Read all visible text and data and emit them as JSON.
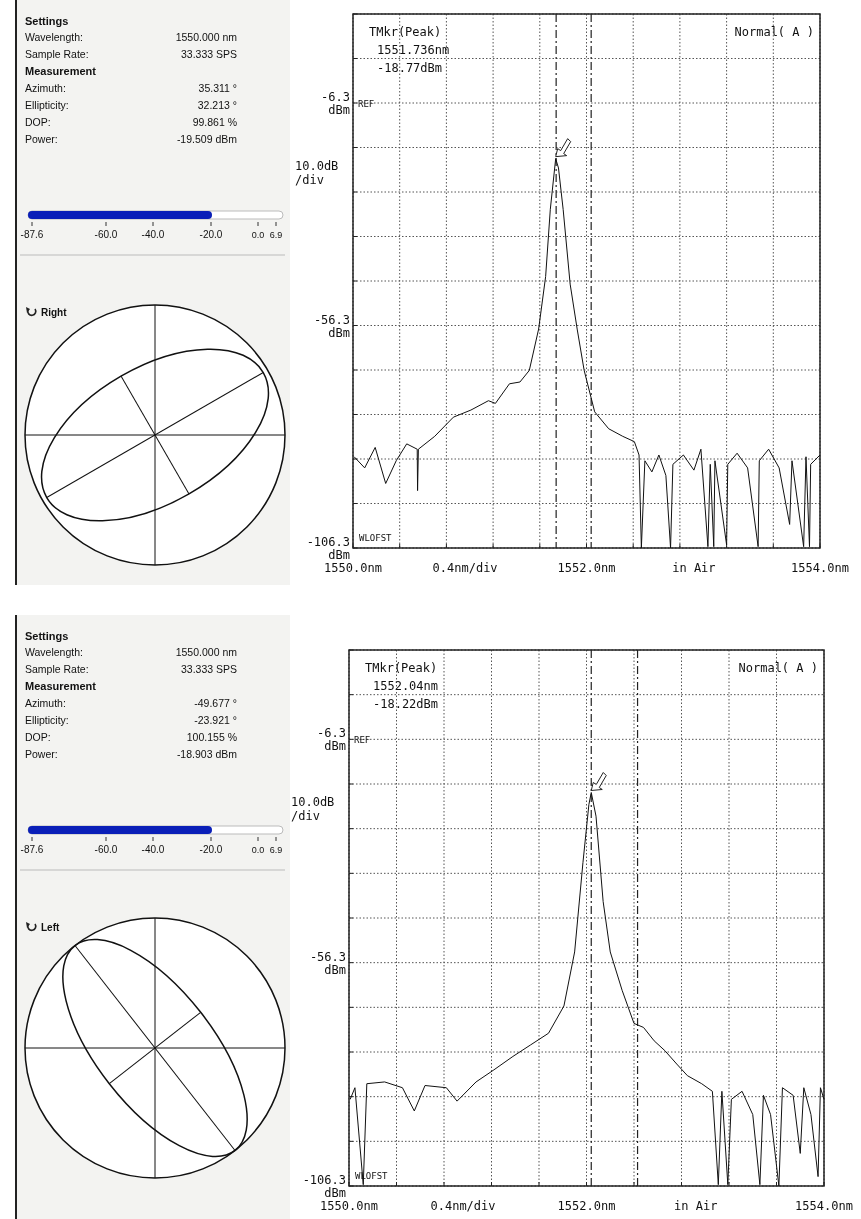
{
  "chart_data": [
    {
      "type": "other",
      "title": "Settings",
      "subtitle": "Measurement",
      "annotations": [
        "Wavelength:",
        "1550.000 nm",
        "Sample Rate:",
        "33.333 SPS",
        "Azimuth:",
        "35.311 °",
        "Ellipticity:",
        "32.213 °",
        "DOP:",
        "99.861 %",
        "Power:",
        "-19.509 dBm",
        "-87.6",
        "-60.0",
        "-40.0",
        "-20.0",
        "0.0",
        "6.9",
        "Right"
      ]
    },
    {
      "type": "line",
      "grid": true,
      "xlim": [
        1550,
        1554
      ],
      "ylim": [
        -106.3,
        13.7
      ],
      "xticks": [
        {
          "value": 1550,
          "label": "1550.0nm"
        },
        {
          "value": 1550.4,
          "label": null
        },
        {
          "value": 1550.8,
          "label": null
        },
        {
          "value": 1551.2,
          "label": null
        },
        {
          "value": 1551.6,
          "label": null
        },
        {
          "value": 1552,
          "label": "1552.0nm"
        },
        {
          "value": 1552.4,
          "label": null
        },
        {
          "value": 1552.8,
          "label": null
        },
        {
          "value": 1553.2,
          "label": null
        },
        {
          "value": 1553.6,
          "label": null
        },
        {
          "value": 1554,
          "label": "1554.0nm"
        }
      ],
      "yticks": [
        {
          "value": 13.7,
          "label": null
        },
        {
          "value": 3.7,
          "label": null
        },
        {
          "value": -6.3,
          "label": "-6.3 dBm"
        },
        {
          "value": -16.3,
          "label": null
        },
        {
          "value": -26.3,
          "label": null
        },
        {
          "value": -36.3,
          "label": null
        },
        {
          "value": -46.3,
          "label": null
        },
        {
          "value": -56.3,
          "label": "-56.3 dBm"
        },
        {
          "value": -66.3,
          "label": null
        },
        {
          "value": -76.3,
          "label": null
        },
        {
          "value": -86.3,
          "label": null
        },
        {
          "value": -96.3,
          "label": null
        },
        {
          "value": -106.3,
          "label": "-106.3 dBm"
        }
      ],
      "ref_lines": [
        {
          "axis": "x",
          "value": 1551.74,
          "line_style": "dashdot"
        },
        {
          "axis": "x",
          "value": 1552.04,
          "line_style": "dashdot"
        }
      ],
      "xlabel": "0.4nm/div",
      "ylabel": "10.0dB /div",
      "annotations": [
        "TMkr(Peak)",
        "1551.736nm",
        "-18.77dBm",
        "Normal( A )",
        "REF",
        "WLOFST",
        "in Air"
      ],
      "series": [
        {
          "color": "#111111",
          "x": [
            1550.01,
            1550.1,
            1550.19,
            1550.28,
            1550.37,
            1550.46,
            1550.55,
            1550.553,
            1550.56,
            1550.7,
            1550.86,
            1551.01,
            1551.16,
            1551.22,
            1551.34,
            1551.43,
            1551.51,
            1551.59,
            1551.65,
            1551.69,
            1551.736,
            1551.76,
            1551.8,
            1551.86,
            1551.92,
            1551.98,
            1552.07,
            1552.19,
            1552.31,
            1552.41,
            1552.45,
            1552.47,
            1552.5,
            1552.56,
            1552.62,
            1552.68,
            1552.72,
            1552.74,
            1552.83,
            1552.92,
            1552.98,
            1553.04,
            1553.06,
            1553.09,
            1553.1,
            1553.2,
            1553.21,
            1553.29,
            1553.38,
            1553.47,
            1553.48,
            1553.56,
            1553.65,
            1553.74,
            1553.76,
            1553.86,
            1553.88,
            1553.91,
            1553.92,
            1554.0
          ],
          "values": [
            -85.8,
            -88.3,
            -83.7,
            -91.8,
            -86.7,
            -82.9,
            -84.1,
            -93.4,
            -84.1,
            -81.2,
            -76.9,
            -75.3,
            -73.2,
            -73.8,
            -69.4,
            -69.0,
            -66.4,
            -57.1,
            -45.3,
            -30.2,
            -18.8,
            -20.9,
            -30.2,
            -47.0,
            -57.1,
            -66.4,
            -75.7,
            -79.5,
            -81.2,
            -82.4,
            -85.4,
            -106.3,
            -86.7,
            -89.2,
            -85.4,
            -90.0,
            -106.3,
            -87.5,
            -85.4,
            -88.8,
            -84.1,
            -106.0,
            -87.5,
            -106.0,
            -86.7,
            -105.6,
            -87.5,
            -85.0,
            -88.3,
            -106.0,
            -86.7,
            -84.1,
            -88.3,
            -101.0,
            -86.7,
            -106.0,
            -85.8,
            -106.0,
            -87.5,
            -85.4
          ]
        }
      ]
    },
    {
      "type": "other",
      "title": "Settings",
      "subtitle": "Measurement",
      "annotations": [
        "Wavelength:",
        "1550.000 nm",
        "Sample Rate:",
        "33.333 SPS",
        "Azimuth:",
        "-49.677 °",
        "Ellipticity:",
        "-23.921 °",
        "DOP:",
        "100.155 %",
        "Power:",
        "-18.903 dBm",
        "-87.6",
        "-60.0",
        "-40.0",
        "-20.0",
        "0.0",
        "6.9",
        "Left"
      ]
    },
    {
      "type": "line",
      "grid": true,
      "xlim": [
        1550,
        1554
      ],
      "ylim": [
        -106.3,
        13.7
      ],
      "xticks": [
        {
          "value": 1550,
          "label": "1550.0nm"
        },
        {
          "value": 1550.4,
          "label": null
        },
        {
          "value": 1550.8,
          "label": null
        },
        {
          "value": 1551.2,
          "label": null
        },
        {
          "value": 1551.6,
          "label": null
        },
        {
          "value": 1552,
          "label": "1552.0nm"
        },
        {
          "value": 1552.4,
          "label": null
        },
        {
          "value": 1552.8,
          "label": null
        },
        {
          "value": 1553.2,
          "label": null
        },
        {
          "value": 1553.6,
          "label": null
        },
        {
          "value": 1554,
          "label": "1554.0nm"
        }
      ],
      "yticks": [
        {
          "value": 13.7,
          "label": null
        },
        {
          "value": 3.7,
          "label": null
        },
        {
          "value": -6.3,
          "label": "-6.3 dBm"
        },
        {
          "value": -16.3,
          "label": null
        },
        {
          "value": -26.3,
          "label": null
        },
        {
          "value": -36.3,
          "label": null
        },
        {
          "value": -46.3,
          "label": null
        },
        {
          "value": -56.3,
          "label": "-56.3 dBm"
        },
        {
          "value": -66.3,
          "label": null
        },
        {
          "value": -76.3,
          "label": null
        },
        {
          "value": -86.3,
          "label": null
        },
        {
          "value": -96.3,
          "label": null
        },
        {
          "value": -106.3,
          "label": "-106.3 dBm"
        }
      ],
      "ref_lines": [
        {
          "axis": "x",
          "value": 1552.04,
          "line_style": "dashdot"
        },
        {
          "axis": "x",
          "value": 1552.43,
          "line_style": "dashdot"
        }
      ],
      "xlabel": "0.4nm/div",
      "ylabel": "10.0dB /div",
      "annotations": [
        "TMkr(Peak)",
        "1552.04nm",
        "-18.22dBm",
        "Normal( A )",
        "REF",
        "WLOFST",
        "in Air"
      ],
      "series": [
        {
          "color": "#111111",
          "x": [
            1550.01,
            1550.05,
            1550.12,
            1550.15,
            1550.3,
            1550.45,
            1550.55,
            1550.64,
            1550.82,
            1550.91,
            1551.07,
            1551.22,
            1551.38,
            1551.53,
            1551.68,
            1551.81,
            1551.9,
            1551.97,
            1552.02,
            1552.04,
            1552.08,
            1552.14,
            1552.2,
            1552.3,
            1552.4,
            1552.48,
            1552.57,
            1552.66,
            1552.76,
            1552.85,
            1552.97,
            1553.06,
            1553.11,
            1553.14,
            1553.19,
            1553.22,
            1553.31,
            1553.4,
            1553.46,
            1553.49,
            1553.55,
            1553.62,
            1553.65,
            1553.74,
            1553.8,
            1553.83,
            1553.89,
            1553.95,
            1553.97,
            1554.0
          ],
          "values": [
            -86.9,
            -84.3,
            -106.0,
            -83.4,
            -83.0,
            -84.3,
            -89.5,
            -83.8,
            -84.3,
            -87.3,
            -83.0,
            -80.3,
            -77.3,
            -74.7,
            -72.1,
            -66.0,
            -53.9,
            -33.9,
            -20.9,
            -18.2,
            -23.5,
            -42.6,
            -53.9,
            -62.5,
            -69.9,
            -70.8,
            -73.8,
            -76.0,
            -79.0,
            -81.6,
            -83.4,
            -85.1,
            -106.0,
            -85.1,
            -106.0,
            -86.9,
            -85.1,
            -90.3,
            -106.0,
            -86.0,
            -90.3,
            -106.3,
            -84.3,
            -86.0,
            -99.0,
            -84.3,
            -90.3,
            -104.2,
            -84.3,
            -86.9
          ]
        }
      ]
    }
  ]
}
